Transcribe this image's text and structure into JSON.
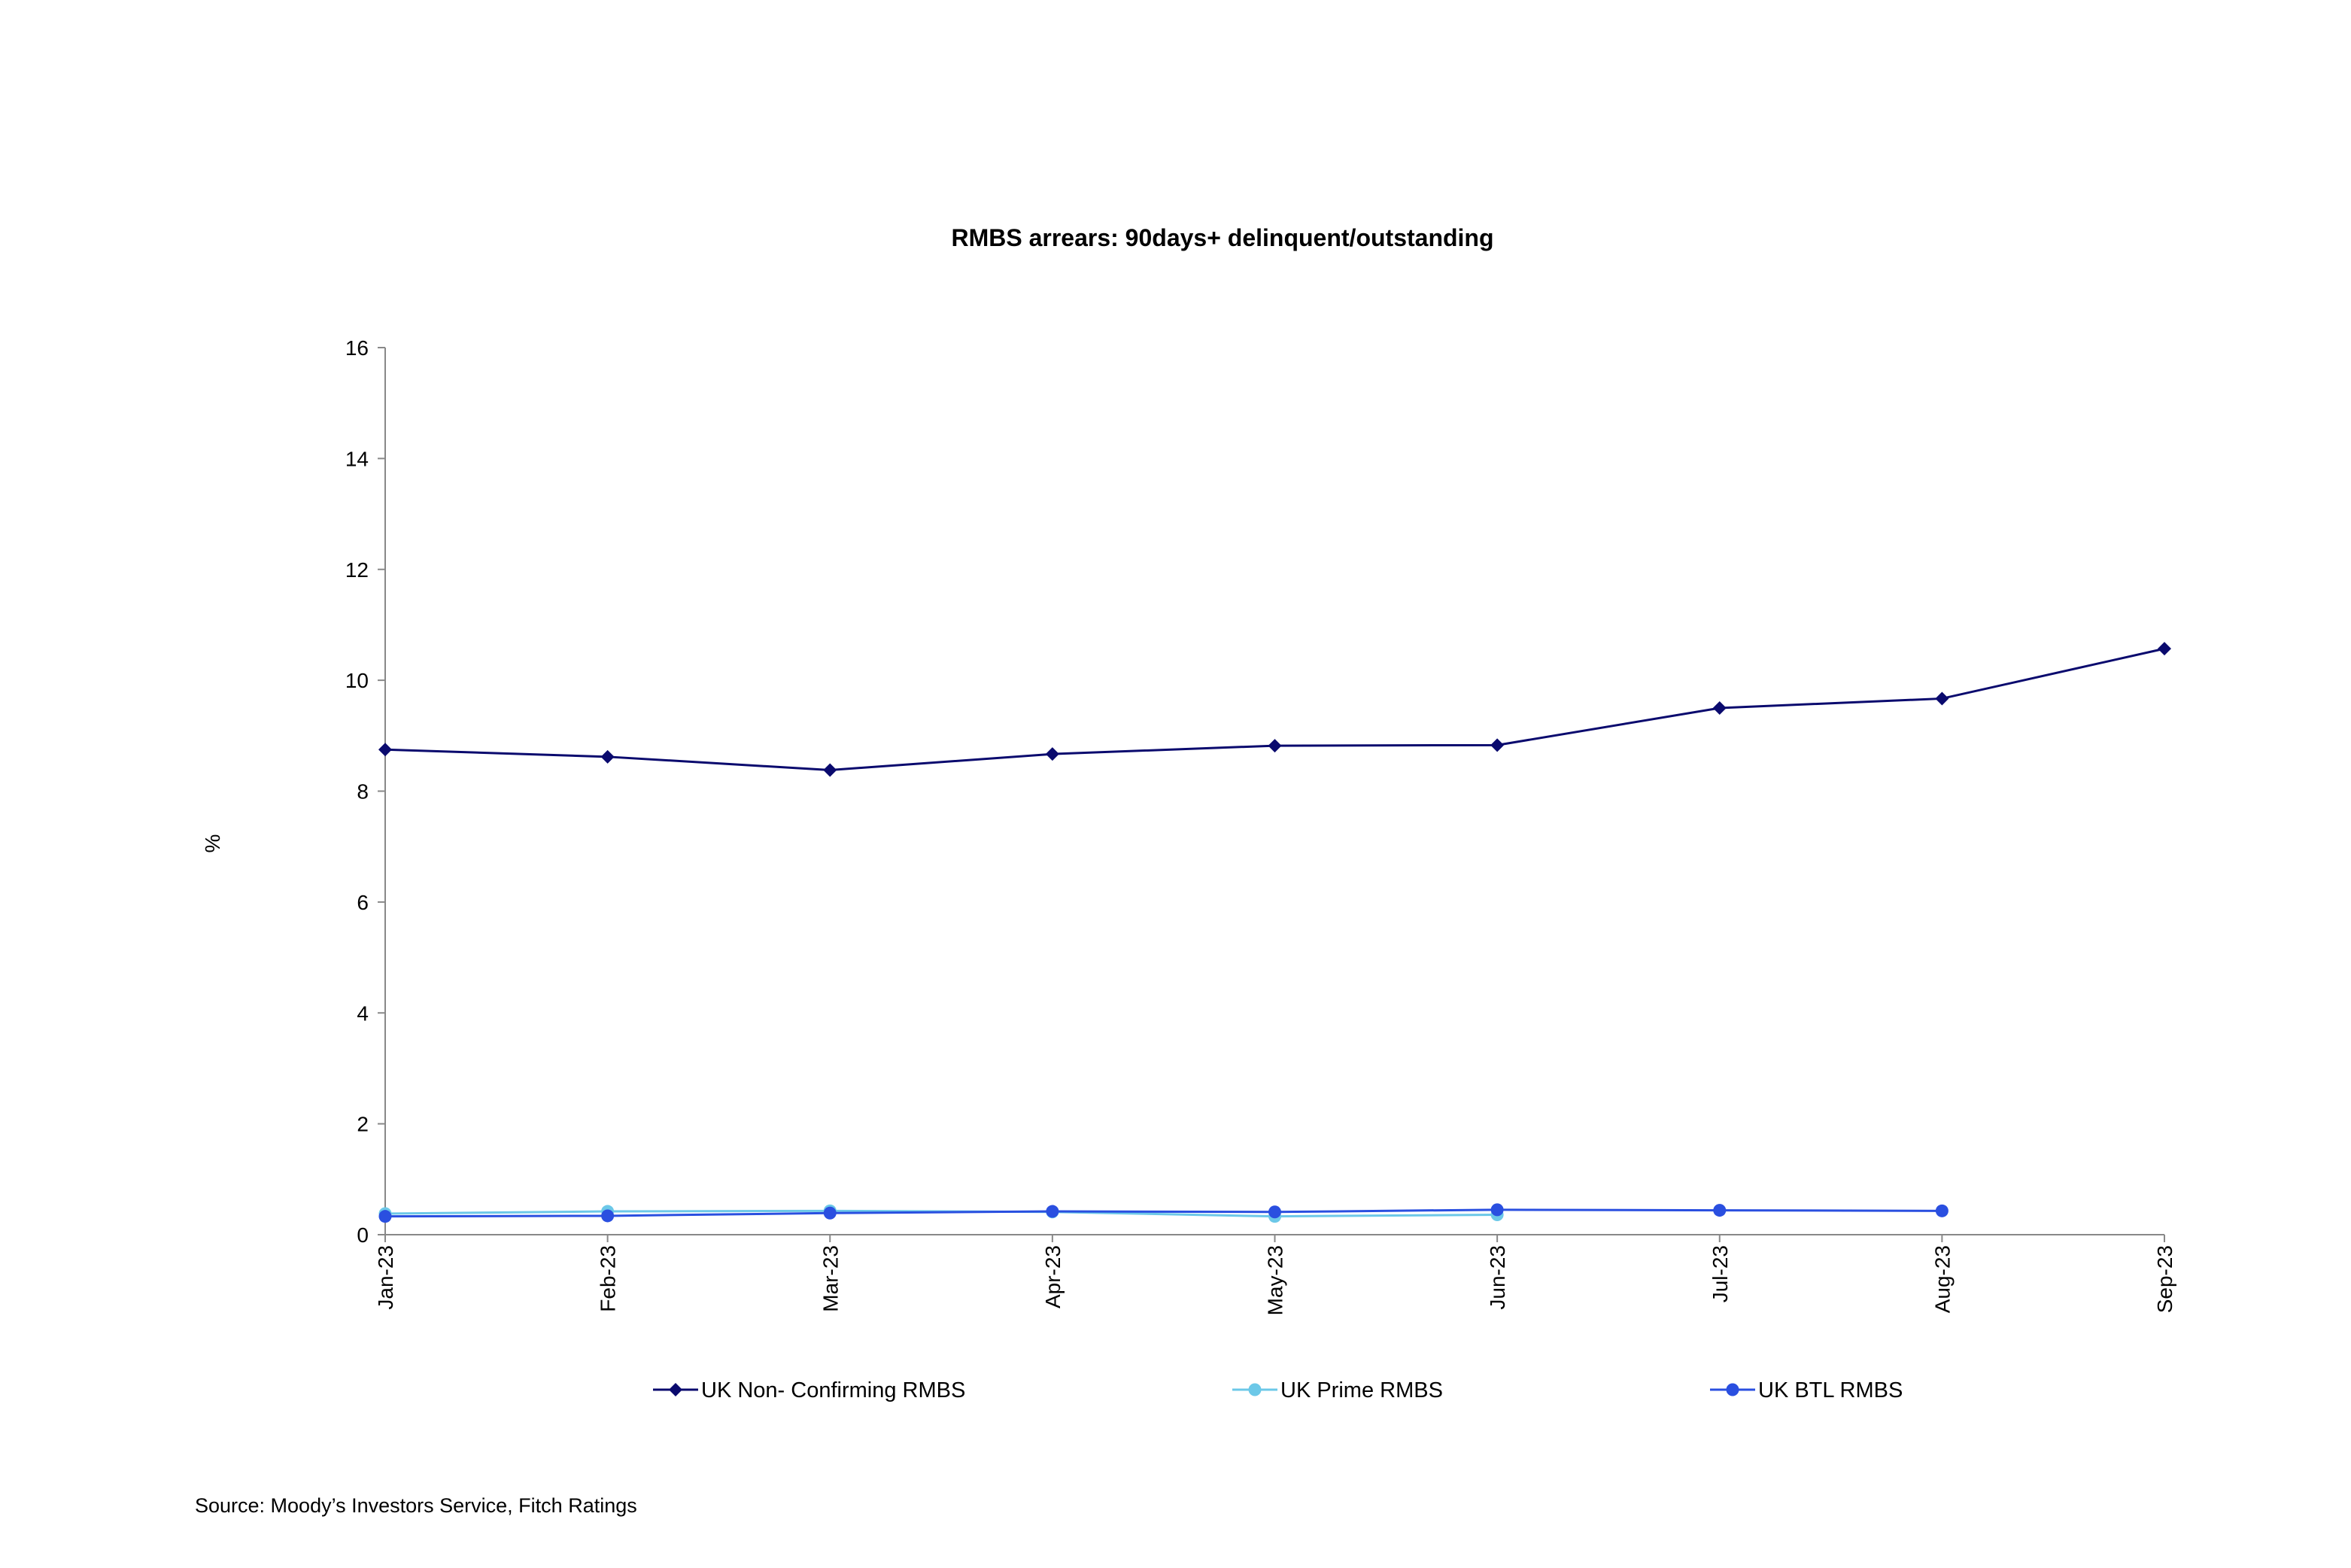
{
  "chart_data": {
    "type": "line",
    "title": "RMBS arrears: 90days+ delinquent/outstanding",
    "ylabel": "%",
    "xlabel": "",
    "ylim": [
      0,
      16
    ],
    "yticks": [
      "0",
      "2",
      "4",
      "6",
      "8",
      "10",
      "12",
      "14",
      "16"
    ],
    "categories": [
      "Jan-23",
      "Feb-23",
      "Mar-23",
      "Apr-23",
      "May-23",
      "Jun-23",
      "Jul-23",
      "Aug-23",
      "Sep-23"
    ],
    "grid": false,
    "legend_position": "bottom",
    "series": [
      {
        "name": "UK Non- Confirming RMBS",
        "color": "#0a0a6e",
        "marker": "diamond",
        "values": [
          8.75,
          8.62,
          8.38,
          8.67,
          8.82,
          8.83,
          9.5,
          9.67,
          10.57
        ]
      },
      {
        "name": "UK Prime RMBS",
        "color": "#6cc8e8",
        "marker": "circle",
        "values": [
          0.38,
          0.42,
          0.43,
          0.41,
          0.33,
          0.36,
          null,
          null,
          null
        ]
      },
      {
        "name": "UK BTL RMBS",
        "color": "#2a4fe0",
        "marker": "circle",
        "values": [
          0.33,
          0.34,
          0.39,
          0.42,
          0.41,
          0.45,
          0.44,
          0.43,
          null
        ]
      }
    ]
  },
  "source": "Source: Moody’s Investors Service, Fitch Ratings"
}
